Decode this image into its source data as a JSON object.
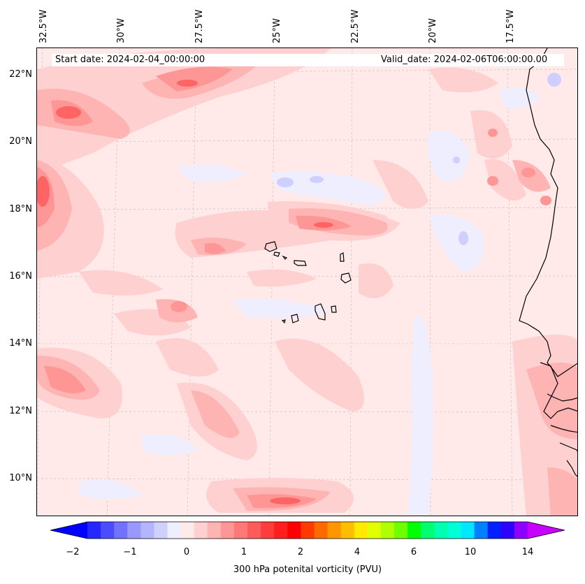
{
  "map": {
    "start_label": "Start date: 2024-02-04_00:00:00",
    "valid_label": "Valid_date: 2024-02-06T06:00:00.00",
    "lon_labels": [
      "32.5°W",
      "30°W",
      "27.5°W",
      "25°W",
      "22.5°W",
      "20°W",
      "17.5°W"
    ],
    "lat_labels": [
      "22°N",
      "20°N",
      "18°N",
      "16°N",
      "14°N",
      "12°N",
      "10°N"
    ],
    "colors": {
      "background": "#ffe9e9",
      "light_pink": "#ffd0d0",
      "pink": "#ffb4b4",
      "salmon": "#ff9696",
      "red": "#ff6464",
      "light_blue": "#eeeeff",
      "blue": "#cfcfff",
      "coast": "#000000"
    }
  },
  "colorbar": {
    "label": "300 hPa potenital vorticity (PVU)",
    "ticks": [
      "−2",
      "−1",
      "0",
      "1",
      "2",
      "4",
      "6",
      "10",
      "14"
    ],
    "colors": [
      "#0000ff",
      "#2626ff",
      "#4c4cff",
      "#7272ff",
      "#9898ff",
      "#b4b4ff",
      "#d0d0ff",
      "#eeeeff",
      "#ffe9e9",
      "#ffd0d0",
      "#ffb4b4",
      "#ff9696",
      "#ff7878",
      "#ff5a5a",
      "#ff3c3c",
      "#ff1e1e",
      "#ff0000",
      "#ff3a00",
      "#ff6a00",
      "#ff9600",
      "#ffbe00",
      "#ffea00",
      "#e0ff00",
      "#b0ff00",
      "#70ff00",
      "#00ff00",
      "#00ff70",
      "#00ffb0",
      "#00ffd8",
      "#00e8ff",
      "#0080ff",
      "#0020ff",
      "#3000ff",
      "#9000ff",
      "#c800ff"
    ]
  }
}
